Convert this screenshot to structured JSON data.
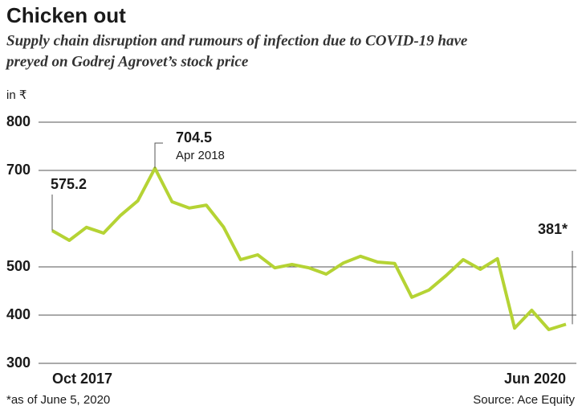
{
  "chart_data": {
    "type": "line",
    "title": "Chicken out",
    "subtitle": [
      "Supply chain disruption and rumours of infection due to COVID-19 have",
      "preyed on Godrej Agrovet’s stock price"
    ],
    "y_label": "in ₹",
    "categories": [
      "Oct 2017",
      null,
      null,
      null,
      null,
      null,
      null,
      null,
      null,
      null,
      null,
      null,
      null,
      null,
      null,
      null,
      null,
      null,
      null,
      null,
      null,
      null,
      null,
      null,
      null,
      null,
      null,
      null,
      null,
      null,
      "Jun 2020"
    ],
    "values": [
      575.2,
      555,
      582,
      570,
      607,
      637,
      704.5,
      635,
      622,
      628,
      583,
      515,
      525,
      498,
      505,
      498,
      485,
      508,
      522,
      510,
      507,
      437,
      452,
      482,
      515,
      495,
      517,
      373,
      410,
      370,
      381
    ],
    "color": "#b5d334",
    "ylim": [
      300,
      800
    ],
    "yticks": [
      300,
      400,
      500,
      700,
      800
    ],
    "grid": true,
    "annotations": [
      {
        "index": 0,
        "text": "575.2"
      },
      {
        "index": 6,
        "text": "704.5",
        "subtext": "Apr 2018"
      },
      {
        "index": 30,
        "text": "381*"
      }
    ],
    "footnote": "*as of June 5, 2020",
    "source": "Source: Ace Equity"
  }
}
